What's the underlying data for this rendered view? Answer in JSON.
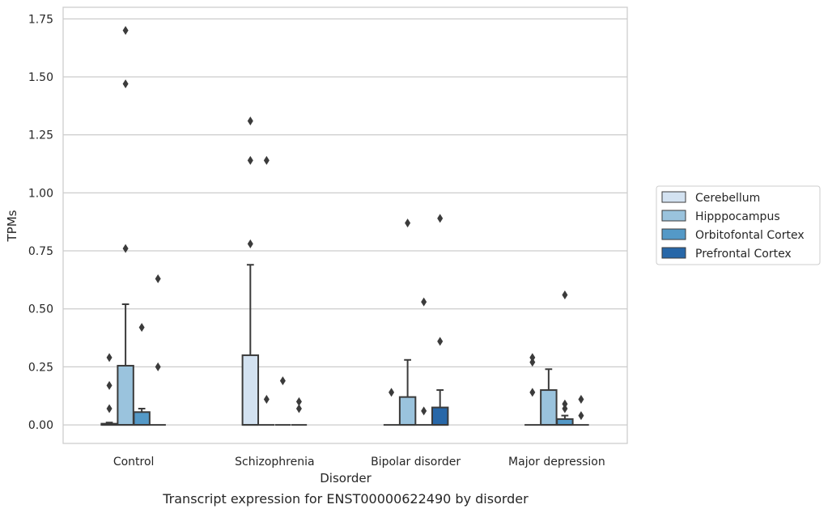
{
  "chart_data": {
    "type": "box",
    "xlabel": "Disorder",
    "ylabel": "TPMs",
    "caption": "Transcript expression for ENST00000622490 by disorder",
    "ylim": [
      -0.08,
      1.8
    ],
    "yticks": [
      "0.00",
      "0.25",
      "0.50",
      "0.75",
      "1.00",
      "1.25",
      "1.50",
      "1.75"
    ],
    "ytick_values": [
      0,
      0.25,
      0.5,
      0.75,
      1.0,
      1.25,
      1.5,
      1.75
    ],
    "grid": "horizontal",
    "legend_position": "right",
    "categories": [
      "Control",
      "Schizophrenia",
      "Bipolar disorder",
      "Major depression"
    ],
    "series": [
      {
        "name": "Cerebellum",
        "color": "#d3e2f1",
        "boxes": [
          {
            "q1": 0,
            "median": 0,
            "q3": 0.005,
            "whisker_low": 0,
            "whisker_high": 0.01,
            "outliers": [
              0.07,
              0.17,
              0.29
            ]
          },
          {
            "q1": 0,
            "median": 0,
            "q3": 0.3,
            "whisker_low": 0,
            "whisker_high": 0.69,
            "outliers": [
              0.78,
              1.14,
              1.31
            ]
          },
          {
            "q1": 0,
            "median": 0,
            "q3": 0,
            "whisker_low": 0,
            "whisker_high": 0,
            "outliers": [
              0.14
            ]
          },
          {
            "q1": 0,
            "median": 0,
            "q3": 0,
            "whisker_low": 0,
            "whisker_high": 0,
            "outliers": [
              0.14,
              0.27,
              0.29
            ]
          }
        ]
      },
      {
        "name": "Hipppocampus",
        "color": "#9ac3dd",
        "boxes": [
          {
            "q1": 0,
            "median": 0,
            "q3": 0.255,
            "whisker_low": 0,
            "whisker_high": 0.52,
            "outliers": [
              0.76,
              1.47,
              1.7
            ]
          },
          {
            "q1": 0,
            "median": 0,
            "q3": 0,
            "whisker_low": 0,
            "whisker_high": 0,
            "outliers": [
              0.11,
              1.14
            ]
          },
          {
            "q1": 0,
            "median": 0,
            "q3": 0.12,
            "whisker_low": 0,
            "whisker_high": 0.28,
            "outliers": [
              0.87
            ]
          },
          {
            "q1": 0,
            "median": 0,
            "q3": 0.15,
            "whisker_low": 0,
            "whisker_high": 0.24,
            "outliers": []
          }
        ]
      },
      {
        "name": "Orbitofontal Cortex",
        "color": "#5499c7",
        "boxes": [
          {
            "q1": 0,
            "median": 0,
            "q3": 0.055,
            "whisker_low": 0,
            "whisker_high": 0.07,
            "outliers": [
              0.42
            ]
          },
          {
            "q1": 0,
            "median": 0,
            "q3": 0,
            "whisker_low": 0,
            "whisker_high": 0,
            "outliers": [
              0.19
            ]
          },
          {
            "q1": 0,
            "median": 0,
            "q3": 0,
            "whisker_low": 0,
            "whisker_high": 0,
            "outliers": [
              0.06,
              0.53
            ]
          },
          {
            "q1": 0,
            "median": 0,
            "q3": 0.025,
            "whisker_low": 0,
            "whisker_high": 0.04,
            "outliers": [
              0.07,
              0.09,
              0.56
            ]
          }
        ]
      },
      {
        "name": "Prefrontal Cortex",
        "color": "#2767a8",
        "boxes": [
          {
            "q1": 0,
            "median": 0,
            "q3": 0,
            "whisker_low": 0,
            "whisker_high": 0,
            "outliers": [
              0.25,
              0.63
            ]
          },
          {
            "q1": 0,
            "median": 0,
            "q3": 0,
            "whisker_low": 0,
            "whisker_high": 0,
            "outliers": [
              0.07,
              0.1
            ]
          },
          {
            "q1": 0,
            "median": 0,
            "q3": 0.075,
            "whisker_low": 0,
            "whisker_high": 0.15,
            "outliers": [
              0.36,
              0.89
            ]
          },
          {
            "q1": 0,
            "median": 0,
            "q3": 0,
            "whisker_low": 0,
            "whisker_high": 0,
            "outliers": [
              0.04,
              0.11
            ]
          }
        ]
      }
    ]
  }
}
